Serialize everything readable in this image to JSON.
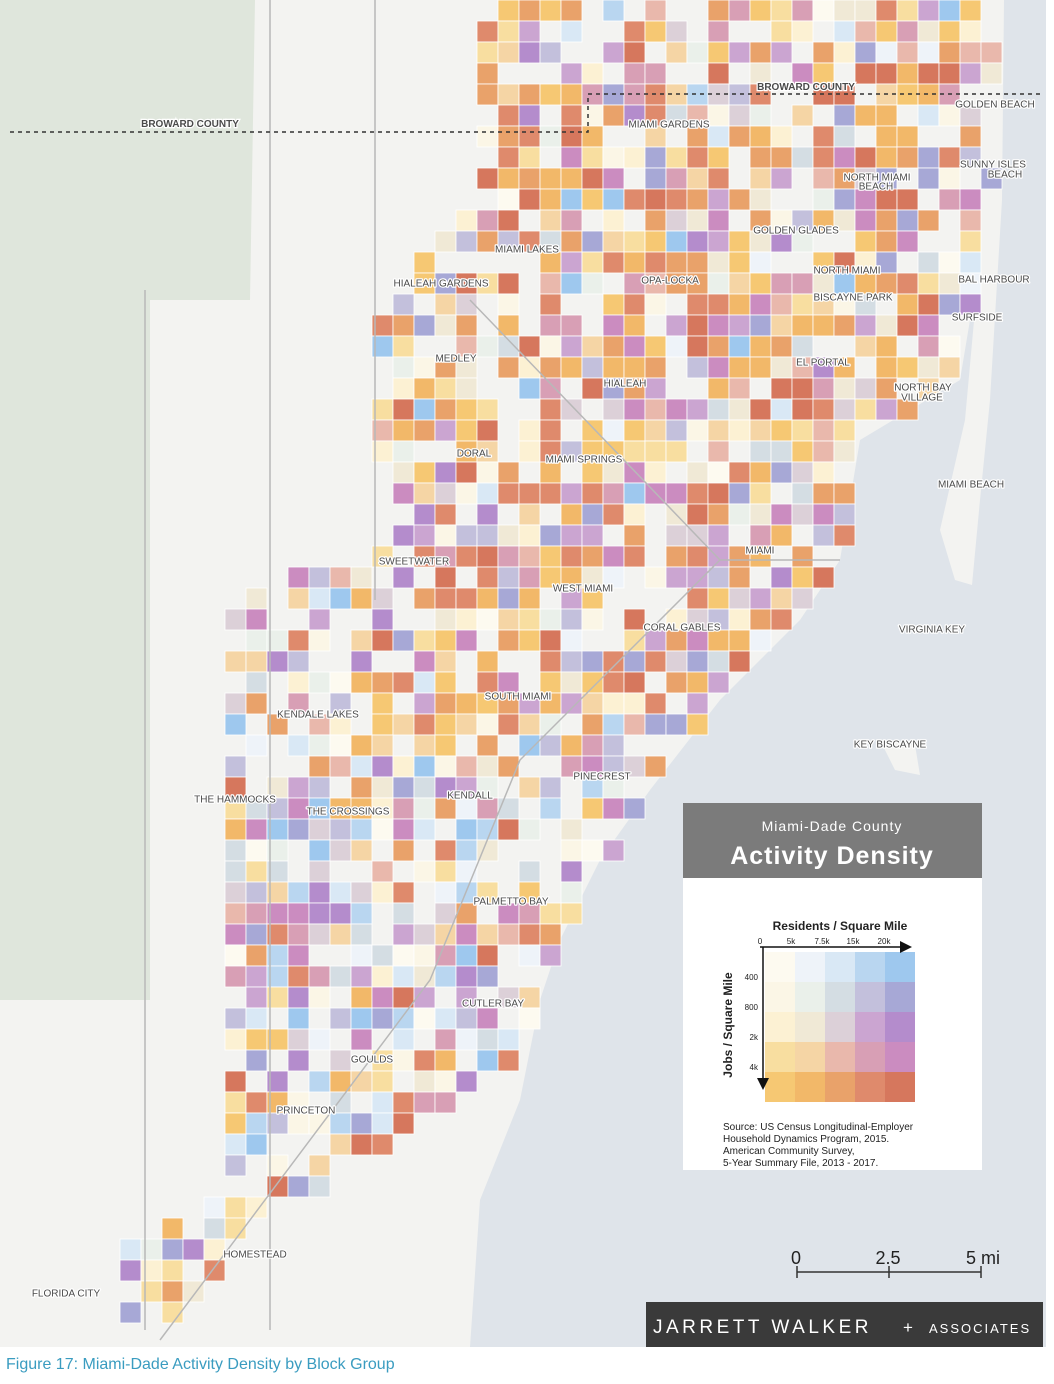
{
  "counties": [
    "BROWARD COUNTY",
    "BROWARD COUNTY"
  ],
  "places": [
    "MIAMI GARDENS",
    "GOLDEN BEACH",
    "SUNNY ISLES",
    "BEACH",
    "NORTH MIAMI",
    "BEACH",
    "GOLDEN GLADES",
    "MIAMI LAKES",
    "OPA-LOCKA",
    "HIALEAH GARDENS",
    "NORTH MIAMI",
    "BAL HARBOUR",
    "BISCAYNE PARK",
    "SURFSIDE",
    "MEDLEY",
    "EL PORTAL",
    "HIALEAH",
    "NORTH BAY",
    "VILLAGE",
    "DORAL",
    "MIAMI SPRINGS",
    "MIAMI BEACH",
    "SWEETWATER",
    "MIAMI",
    "WEST MIAMI",
    "CORAL GABLES",
    "VIRGINIA KEY",
    "SOUTH MIAMI",
    "KENDALE LAKES",
    "KEY BISCAYNE",
    "PINECREST",
    "KENDALL",
    "THE HAMMOCKS",
    "THE CROSSINGS",
    "PALMETTO BAY",
    "CUTLER BAY",
    "GOULDS",
    "PRINCETON",
    "HOMESTEAD",
    "FLORIDA CITY"
  ],
  "legend": {
    "subtitle": "Miami-Dade County",
    "title": "Activity Density",
    "x_label": "Residents / Square Mile",
    "x_ticks": [
      "0",
      "5k",
      "7.5k",
      "15k",
      "20k"
    ],
    "y_label": "Jobs / Square Mile",
    "y_ticks": [
      "400",
      "800",
      "2k",
      "4k"
    ],
    "colors": [
      [
        "#fdfaf0",
        "#eef3f9",
        "#d9e8f5",
        "#b9d6f0",
        "#9ec8ee"
      ],
      [
        "#fbf6e6",
        "#eaf0ea",
        "#d4dde3",
        "#c3c0dc",
        "#a7a8d6"
      ],
      [
        "#fcf1d3",
        "#f0e9d6",
        "#dcd0d8",
        "#cba5d1",
        "#b48ccc"
      ],
      [
        "#f8dea0",
        "#f5d5a5",
        "#e9b8ac",
        "#d89fb5",
        "#cb8cc0"
      ],
      [
        "#f6c873",
        "#f2b869",
        "#e9a26a",
        "#df8a6c",
        "#d6775d"
      ]
    ],
    "source": [
      "Source: US Census Longitudinal-Employer",
      "Household Dynamics Program, 2015.",
      "American Community Survey,",
      "5-Year Summary File, 2013 - 2017."
    ]
  },
  "scale": [
    "0",
    "2.5",
    "5 mi"
  ],
  "logo": {
    "name": "JARRETT WALKER",
    "plus": "+",
    "associates": "ASSOCIATES"
  },
  "caption": "Figure 17: Miami-Dade Activity Density by Block Group"
}
